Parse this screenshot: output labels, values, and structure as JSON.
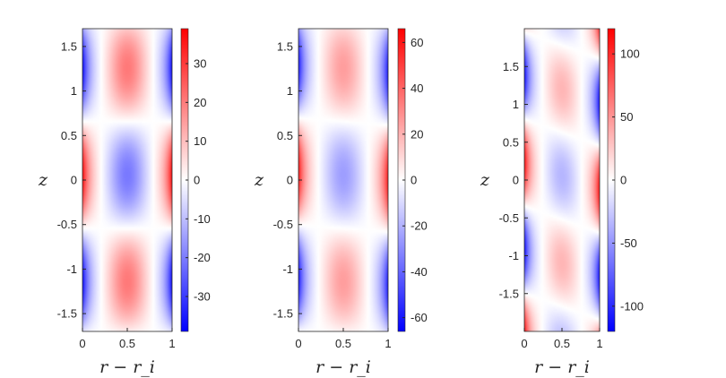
{
  "chart_data": [
    {
      "type": "heatmap",
      "xlabel": "r − r_i",
      "ylabel": "z",
      "xlim": [
        0,
        1
      ],
      "ylim": [
        -1.7,
        1.7
      ],
      "x_ticks": [
        "0",
        "0.5",
        "1"
      ],
      "y_ticks": [
        "-1.5",
        "-1",
        "-0.5",
        "0",
        "0.5",
        "1",
        "1.5"
      ],
      "colorbar": {
        "min": -39,
        "max": 39,
        "ticks": [
          "30",
          "20",
          "10",
          "0",
          "-10",
          "-20",
          "-30"
        ],
        "colormap": "blue-white-red"
      },
      "field": {
        "wavelength_z": 2.4,
        "wall_amplitude": 38,
        "core_amplitude": 13,
        "skew": 0
      }
    },
    {
      "type": "heatmap",
      "xlabel": "r − r_i",
      "ylabel": "z",
      "xlim": [
        0,
        1
      ],
      "ylim": [
        -1.7,
        1.7
      ],
      "x_ticks": [
        "0",
        "0.5",
        "1"
      ],
      "y_ticks": [
        "-1.5",
        "-1",
        "-0.5",
        "0",
        "0.5",
        "1",
        "1.5"
      ],
      "colorbar": {
        "min": -66,
        "max": 66,
        "ticks": [
          "60",
          "40",
          "20",
          "0",
          "-20",
          "-40",
          "-60"
        ],
        "colormap": "blue-white-red"
      },
      "field": {
        "wavelength_z": 2.4,
        "wall_amplitude": 60,
        "core_amplitude": 16,
        "skew": 0.08
      }
    },
    {
      "type": "heatmap",
      "xlabel": "r − r_i",
      "ylabel": "z",
      "xlim": [
        0,
        1
      ],
      "ylim": [
        -2,
        2
      ],
      "x_ticks": [
        "0",
        "0.5",
        "1"
      ],
      "y_ticks": [
        "-1.5",
        "-1",
        "-0.5",
        "0",
        "0.5",
        "1",
        "1.5"
      ],
      "colorbar": {
        "min": -120,
        "max": 120,
        "ticks": [
          "100",
          "50",
          "0",
          "-50",
          "-100"
        ],
        "colormap": "blue-white-red"
      },
      "field": {
        "wavelength_z": 2.3,
        "wall_amplitude": 115,
        "core_amplitude": 22,
        "skew": 0.35
      }
    }
  ],
  "colors": {
    "positive": "#ff0000",
    "negative": "#0000ff",
    "zero": "#ffffff",
    "axis": "#262626"
  }
}
